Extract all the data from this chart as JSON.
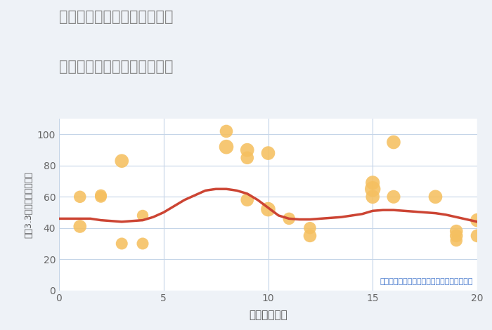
{
  "title_line1": "千葉県千葉市若葉区若松台の",
  "title_line2": "駅距離別中古マンション価格",
  "xlabel": "駅距離（分）",
  "ylabel": "坪（3.3㎡）単価（万円）",
  "annotation": "円の大きさは、取引のあった物件面積を示す",
  "bg_color": "#eef2f7",
  "plot_bg_color": "#ffffff",
  "grid_color": "#c5d5e8",
  "scatter_color": "#f5c060",
  "scatter_alpha": 0.88,
  "line_color": "#cc4433",
  "line_width": 2.5,
  "title_color": "#888888",
  "xlabel_color": "#555555",
  "ylabel_color": "#555555",
  "annotation_color": "#4477cc",
  "xlim": [
    0,
    20
  ],
  "ylim": [
    0,
    110
  ],
  "xticks": [
    0,
    5,
    10,
    15,
    20
  ],
  "yticks": [
    0,
    20,
    40,
    60,
    80,
    100
  ],
  "scatter_x": [
    1,
    1,
    2,
    2,
    3,
    3,
    4,
    4,
    8,
    8,
    9,
    9,
    9,
    10,
    10,
    11,
    12,
    12,
    15,
    15,
    15,
    16,
    16,
    18,
    19,
    19,
    19,
    20,
    20
  ],
  "scatter_y": [
    41,
    60,
    61,
    60,
    83,
    30,
    30,
    48,
    102,
    92,
    85,
    90,
    58,
    88,
    52,
    46,
    40,
    35,
    69,
    65,
    60,
    60,
    95,
    60,
    38,
    35,
    32,
    45,
    35
  ],
  "scatter_size": [
    180,
    160,
    150,
    150,
    200,
    150,
    150,
    140,
    180,
    220,
    180,
    200,
    180,
    200,
    220,
    160,
    160,
    180,
    210,
    260,
    200,
    190,
    200,
    200,
    180,
    180,
    160,
    200,
    180
  ],
  "trend_x": [
    0,
    0.5,
    1,
    1.5,
    2,
    2.5,
    3,
    3.5,
    4,
    4.5,
    5,
    5.5,
    6,
    6.5,
    7,
    7.5,
    8,
    8.5,
    9,
    9.5,
    10,
    10.5,
    11,
    11.5,
    12,
    12.5,
    13,
    13.5,
    14,
    14.5,
    15,
    15.5,
    16,
    16.5,
    17,
    17.5,
    18,
    18.5,
    19,
    19.5,
    20
  ],
  "trend_y": [
    46,
    46,
    46,
    46,
    45,
    44.5,
    44,
    44.5,
    45,
    47,
    50,
    54,
    58,
    61,
    64,
    65,
    65,
    64,
    62,
    58,
    53,
    48,
    46,
    45.5,
    45.5,
    46,
    46.5,
    47,
    48,
    49,
    51,
    51.5,
    51.5,
    51,
    50.5,
    50,
    49.5,
    48.5,
    47,
    45.5,
    44
  ]
}
